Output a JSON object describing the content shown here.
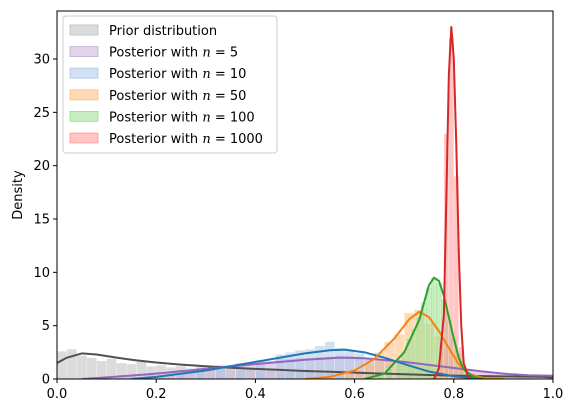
{
  "chart_data": {
    "type": "histogram+kde",
    "xlabel": "",
    "ylabel": "Density",
    "xlim": [
      0,
      1
    ],
    "ylim": [
      0,
      34.5
    ],
    "x_ticks": [
      0.0,
      0.2,
      0.4,
      0.6,
      0.8,
      1.0
    ],
    "x_tick_labels": [
      "0.0",
      "0.2",
      "0.4",
      "0.6",
      "0.8",
      "1.0"
    ],
    "y_ticks": [
      0,
      5,
      10,
      15,
      20,
      25,
      30
    ],
    "y_tick_labels": [
      "0",
      "5",
      "10",
      "15",
      "20",
      "25",
      "30"
    ],
    "grid": false,
    "legend_position": "top-left",
    "legend_entries": [
      {
        "text_pre": "Prior distribution",
        "n": ""
      },
      {
        "text_pre": "Posterior with ",
        "n": "5"
      },
      {
        "text_pre": "Posterior with ",
        "n": "10"
      },
      {
        "text_pre": "Posterior with ",
        "n": "50"
      },
      {
        "text_pre": "Posterior with ",
        "n": "100"
      },
      {
        "text_pre": "Posterior with ",
        "n": "1000"
      }
    ],
    "series": [
      {
        "id": "prior",
        "color": "#505050",
        "fill": "#bdbdbd",
        "bin_width": 0.02,
        "hist": [
          [
            0.01,
            2.6
          ],
          [
            0.03,
            2.8
          ],
          [
            0.05,
            2.2
          ],
          [
            0.07,
            2.0
          ],
          [
            0.09,
            1.7
          ],
          [
            0.11,
            1.9
          ],
          [
            0.13,
            1.5
          ],
          [
            0.15,
            1.4
          ],
          [
            0.17,
            1.6
          ],
          [
            0.19,
            1.2
          ],
          [
            0.21,
            1.3
          ],
          [
            0.23,
            1.1
          ],
          [
            0.25,
            1.2
          ],
          [
            0.27,
            1.0
          ],
          [
            0.29,
            1.1
          ],
          [
            0.31,
            0.9
          ],
          [
            0.33,
            1.0
          ],
          [
            0.35,
            0.9
          ],
          [
            0.37,
            0.8
          ],
          [
            0.39,
            0.9
          ],
          [
            0.41,
            0.8
          ],
          [
            0.43,
            0.8
          ],
          [
            0.45,
            0.7
          ],
          [
            0.47,
            0.7
          ],
          [
            0.49,
            0.8
          ],
          [
            0.51,
            0.7
          ],
          [
            0.53,
            0.6
          ],
          [
            0.55,
            0.6
          ],
          [
            0.57,
            0.6
          ],
          [
            0.59,
            0.5
          ],
          [
            0.61,
            0.5
          ],
          [
            0.63,
            0.5
          ],
          [
            0.65,
            0.5
          ],
          [
            0.67,
            0.4
          ],
          [
            0.69,
            0.4
          ],
          [
            0.71,
            0.4
          ],
          [
            0.73,
            0.4
          ],
          [
            0.75,
            0.3
          ],
          [
            0.77,
            0.3
          ],
          [
            0.79,
            0.3
          ],
          [
            0.81,
            0.3
          ],
          [
            0.83,
            0.3
          ],
          [
            0.85,
            0.2
          ],
          [
            0.87,
            0.2
          ],
          [
            0.89,
            0.2
          ],
          [
            0.91,
            0.2
          ],
          [
            0.93,
            0.2
          ],
          [
            0.95,
            0.1
          ],
          [
            0.97,
            0.1
          ],
          [
            0.99,
            0.1
          ]
        ],
        "kde": [
          [
            0.0,
            1.5
          ],
          [
            0.02,
            2.0
          ],
          [
            0.05,
            2.4
          ],
          [
            0.08,
            2.3
          ],
          [
            0.12,
            2.0
          ],
          [
            0.16,
            1.75
          ],
          [
            0.2,
            1.55
          ],
          [
            0.25,
            1.35
          ],
          [
            0.3,
            1.2
          ],
          [
            0.35,
            1.05
          ],
          [
            0.4,
            0.95
          ],
          [
            0.45,
            0.85
          ],
          [
            0.5,
            0.75
          ],
          [
            0.55,
            0.68
          ],
          [
            0.6,
            0.6
          ],
          [
            0.65,
            0.52
          ],
          [
            0.7,
            0.45
          ],
          [
            0.75,
            0.38
          ],
          [
            0.8,
            0.32
          ],
          [
            0.85,
            0.28
          ],
          [
            0.9,
            0.25
          ],
          [
            0.95,
            0.22
          ],
          [
            0.98,
            0.2
          ],
          [
            1.0,
            0.15
          ]
        ]
      },
      {
        "id": "n5",
        "color": "#9467bd",
        "fill": "#c5b0d5",
        "bin_width": 0.04,
        "hist": [
          [
            0.1,
            0.2
          ],
          [
            0.14,
            0.4
          ],
          [
            0.18,
            0.5
          ],
          [
            0.22,
            0.7
          ],
          [
            0.26,
            0.9
          ],
          [
            0.3,
            1.1
          ],
          [
            0.34,
            1.3
          ],
          [
            0.38,
            1.5
          ],
          [
            0.42,
            1.7
          ],
          [
            0.46,
            1.9
          ],
          [
            0.5,
            2.0
          ],
          [
            0.54,
            2.1
          ],
          [
            0.58,
            2.2
          ],
          [
            0.62,
            2.0
          ],
          [
            0.66,
            1.8
          ],
          [
            0.7,
            1.6
          ],
          [
            0.74,
            1.3
          ],
          [
            0.78,
            1.1
          ],
          [
            0.82,
            0.9
          ],
          [
            0.86,
            0.7
          ],
          [
            0.9,
            0.5
          ],
          [
            0.94,
            0.4
          ]
        ],
        "kde": [
          [
            0.05,
            0.0
          ],
          [
            0.1,
            0.15
          ],
          [
            0.2,
            0.5
          ],
          [
            0.3,
            0.95
          ],
          [
            0.4,
            1.4
          ],
          [
            0.5,
            1.8
          ],
          [
            0.57,
            2.0
          ],
          [
            0.62,
            1.95
          ],
          [
            0.7,
            1.6
          ],
          [
            0.78,
            1.15
          ],
          [
            0.85,
            0.75
          ],
          [
            0.9,
            0.5
          ],
          [
            0.95,
            0.35
          ],
          [
            1.0,
            0.3
          ]
        ]
      },
      {
        "id": "n10",
        "color": "#1f77b4",
        "fill": "#aec7e8",
        "bin_width": 0.02,
        "hist": [
          [
            0.17,
            0.2
          ],
          [
            0.21,
            0.4
          ],
          [
            0.25,
            0.6
          ],
          [
            0.29,
            0.8
          ],
          [
            0.33,
            1.1
          ],
          [
            0.37,
            1.4
          ],
          [
            0.41,
            1.8
          ],
          [
            0.45,
            2.3
          ],
          [
            0.47,
            2.5
          ],
          [
            0.49,
            2.7
          ],
          [
            0.51,
            2.8
          ],
          [
            0.53,
            3.1
          ],
          [
            0.55,
            3.5
          ],
          [
            0.57,
            2.9
          ],
          [
            0.59,
            2.7
          ],
          [
            0.61,
            2.4
          ],
          [
            0.63,
            2.0
          ],
          [
            0.65,
            1.7
          ],
          [
            0.67,
            1.4
          ],
          [
            0.69,
            1.0
          ],
          [
            0.71,
            0.8
          ],
          [
            0.73,
            0.6
          ],
          [
            0.75,
            0.4
          ],
          [
            0.77,
            0.2
          ]
        ],
        "kde": [
          [
            0.15,
            0.0
          ],
          [
            0.2,
            0.2
          ],
          [
            0.3,
            0.8
          ],
          [
            0.4,
            1.6
          ],
          [
            0.45,
            2.0
          ],
          [
            0.5,
            2.4
          ],
          [
            0.55,
            2.7
          ],
          [
            0.58,
            2.75
          ],
          [
            0.62,
            2.5
          ],
          [
            0.66,
            2.0
          ],
          [
            0.7,
            1.4
          ],
          [
            0.75,
            0.7
          ],
          [
            0.8,
            0.25
          ],
          [
            0.85,
            0.05
          ]
        ]
      },
      {
        "id": "n50",
        "color": "#ff7f0e",
        "fill": "#ffbb78",
        "bin_width": 0.02,
        "hist": [
          [
            0.55,
            0.2
          ],
          [
            0.59,
            0.5
          ],
          [
            0.61,
            0.9
          ],
          [
            0.63,
            1.5
          ],
          [
            0.65,
            2.5
          ],
          [
            0.67,
            3.5
          ],
          [
            0.69,
            4.2
          ],
          [
            0.71,
            6.2
          ],
          [
            0.73,
            6.5
          ],
          [
            0.75,
            5.2
          ],
          [
            0.77,
            4.0
          ],
          [
            0.79,
            2.7
          ],
          [
            0.81,
            1.3
          ],
          [
            0.83,
            0.5
          ]
        ],
        "kde": [
          [
            0.5,
            0.0
          ],
          [
            0.55,
            0.2
          ],
          [
            0.6,
            0.8
          ],
          [
            0.64,
            1.9
          ],
          [
            0.68,
            3.8
          ],
          [
            0.71,
            5.6
          ],
          [
            0.73,
            6.3
          ],
          [
            0.75,
            5.8
          ],
          [
            0.77,
            4.5
          ],
          [
            0.79,
            2.9
          ],
          [
            0.81,
            1.4
          ],
          [
            0.83,
            0.5
          ],
          [
            0.86,
            0.1
          ],
          [
            0.9,
            0.0
          ]
        ]
      },
      {
        "id": "n100",
        "color": "#2ca02c",
        "fill": "#98df8a",
        "bin_width": 0.0125,
        "hist": [
          [
            0.65,
            0.4
          ],
          [
            0.67,
            1.0
          ],
          [
            0.69,
            1.8
          ],
          [
            0.7,
            2.6
          ],
          [
            0.71,
            3.8
          ],
          [
            0.72,
            4.7
          ],
          [
            0.73,
            5.8
          ],
          [
            0.74,
            7.2
          ],
          [
            0.75,
            8.6
          ],
          [
            0.76,
            9.5
          ],
          [
            0.77,
            9.0
          ],
          [
            0.78,
            7.5
          ],
          [
            0.79,
            5.5
          ],
          [
            0.8,
            3.8
          ],
          [
            0.81,
            2.4
          ],
          [
            0.82,
            1.2
          ],
          [
            0.83,
            0.5
          ]
        ],
        "kde": [
          [
            0.62,
            0.0
          ],
          [
            0.66,
            0.5
          ],
          [
            0.7,
            2.5
          ],
          [
            0.73,
            5.5
          ],
          [
            0.75,
            8.8
          ],
          [
            0.76,
            9.5
          ],
          [
            0.77,
            9.2
          ],
          [
            0.78,
            7.8
          ],
          [
            0.79,
            5.8
          ],
          [
            0.8,
            3.8
          ],
          [
            0.81,
            2.0
          ],
          [
            0.82,
            0.9
          ],
          [
            0.84,
            0.2
          ],
          [
            0.86,
            0.0
          ]
        ]
      },
      {
        "id": "n1000",
        "color": "#d62728",
        "fill": "#ff9896",
        "bin_width": 0.01,
        "hist": [
          [
            0.765,
            0.6
          ],
          [
            0.775,
            3.5
          ],
          [
            0.785,
            23.0
          ],
          [
            0.795,
            32.0
          ],
          [
            0.805,
            19.0
          ],
          [
            0.815,
            3.0
          ]
        ],
        "kde": [
          [
            0.76,
            0.0
          ],
          [
            0.77,
            1.0
          ],
          [
            0.78,
            6.0
          ],
          [
            0.785,
            17.0
          ],
          [
            0.79,
            28.5
          ],
          [
            0.795,
            33.0
          ],
          [
            0.8,
            30.0
          ],
          [
            0.805,
            22.0
          ],
          [
            0.81,
            12.0
          ],
          [
            0.815,
            5.0
          ],
          [
            0.82,
            1.5
          ],
          [
            0.83,
            0.0
          ]
        ]
      }
    ]
  }
}
